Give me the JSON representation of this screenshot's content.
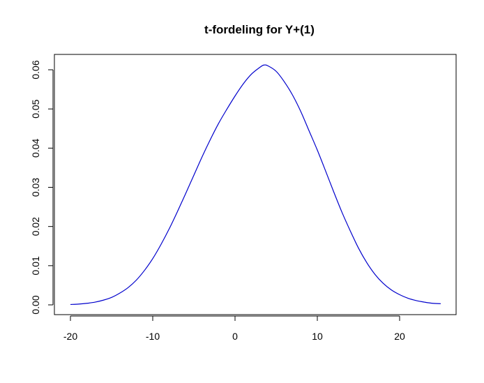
{
  "chart_data": {
    "type": "line",
    "title": "t-fordeling for Y+(1)",
    "xlabel": "",
    "ylabel": "",
    "xlim": [
      -20,
      25
    ],
    "ylim": [
      0,
      0.061
    ],
    "x_ticks": [
      -20,
      -10,
      0,
      10,
      20
    ],
    "x_tick_labels": [
      "-20",
      "-10",
      "0",
      "10",
      "20"
    ],
    "y_ticks": [
      0.0,
      0.01,
      0.02,
      0.03,
      0.04,
      0.05,
      0.06
    ],
    "y_tick_labels": [
      "0.00",
      "0.01",
      "0.02",
      "0.03",
      "0.04",
      "0.05",
      "0.06"
    ],
    "grid": false,
    "legend": "none",
    "series": [
      {
        "color": "#0000cc",
        "x": [
          -20,
          -19,
          -18,
          -17,
          -16,
          -15,
          -14,
          -13,
          -12,
          -11,
          -10,
          -9,
          -8,
          -7,
          -6,
          -5,
          -4,
          -3,
          -2,
          -1,
          0,
          1,
          2,
          3,
          3.5,
          4,
          5,
          6,
          7,
          8,
          9,
          10,
          11,
          12,
          13,
          14,
          15,
          16,
          17,
          18,
          19,
          20,
          21,
          22,
          23,
          24,
          25
        ],
        "y": [
          0.0001,
          0.0002,
          0.0004,
          0.0007,
          0.0012,
          0.0019,
          0.003,
          0.0044,
          0.0063,
          0.0088,
          0.0118,
          0.0154,
          0.0194,
          0.0238,
          0.0284,
          0.0331,
          0.0378,
          0.0422,
          0.0463,
          0.0499,
          0.0533,
          0.0564,
          0.0589,
          0.0606,
          0.0612,
          0.061,
          0.0596,
          0.0569,
          0.0535,
          0.0493,
          0.0444,
          0.0395,
          0.0342,
          0.0288,
          0.0236,
          0.0189,
          0.0145,
          0.0108,
          0.0078,
          0.0055,
          0.0038,
          0.0026,
          0.0017,
          0.0011,
          0.0007,
          0.0004,
          0.0003
        ]
      }
    ]
  }
}
